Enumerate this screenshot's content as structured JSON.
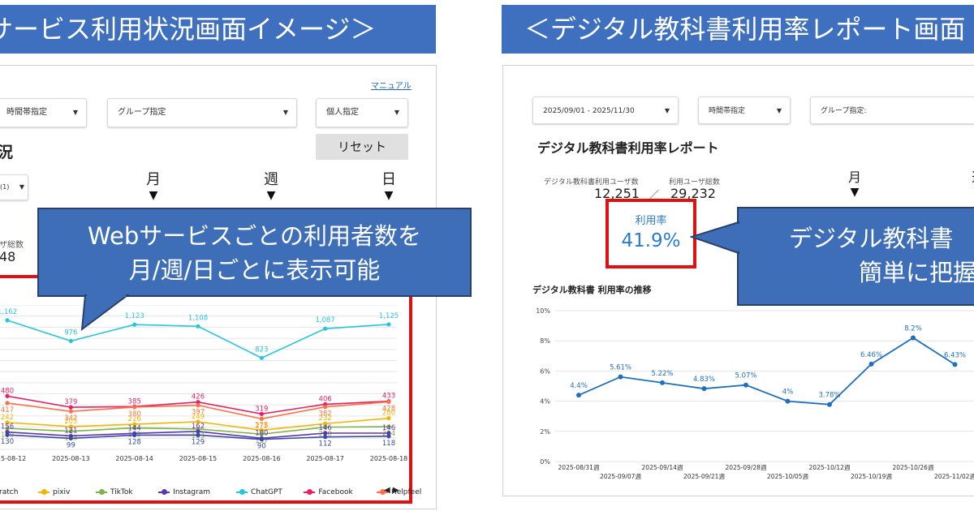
{
  "banners": {
    "left": "サービス利用状況画面イメージ＞",
    "right": "＜デジタル教科書利用率レポート画面"
  },
  "left_panel": {
    "manual_link": "マニュアル",
    "filters": {
      "time": "時間帯指定",
      "group": "グループ指定",
      "individual": "個人指定"
    },
    "heading_fragment": "況",
    "reset_button": "リセット",
    "small_dropdown": "(1)",
    "periods": {
      "month": "月",
      "week": "週",
      "day": "日"
    },
    "partial_label": "ザ総数",
    "partial_value": "48",
    "callout": {
      "line1": "Webサービスごとの利用者数を",
      "line2": "月/週/日ごとに表示可能"
    },
    "legend": [
      "ratch",
      "pixiv",
      "TikTok",
      "Instagram",
      "ChatGPT",
      "Facebook",
      "Helpfeel"
    ],
    "legend_colors": [
      "#3949ab",
      "#f4b400",
      "#7cb342",
      "#5e35b1",
      "#26c6da",
      "#e91e63",
      "#ff7043"
    ]
  },
  "right_panel": {
    "filters": {
      "date": "2025/09/01 - 2025/11/30",
      "time": "時間帯指定",
      "group": "グループ指定:"
    },
    "title": "デジタル教科書利用率レポート",
    "stats": {
      "users_label": "デジタル教科書利用ユーザ数",
      "users_value": "12,251",
      "separator": "／",
      "total_label": "利用ユーザ総数",
      "total_value": "29,232",
      "rate_label": "利用率",
      "rate_value": "41.9%"
    },
    "periods": {
      "month": "月",
      "week": "週"
    },
    "chart_title": "デジタル教科書 利用率の推移",
    "callout": {
      "line1": "デジタル教科書",
      "line2": "簡単に把握"
    }
  },
  "chart_data": [
    {
      "type": "line",
      "title": "",
      "x": [
        "2025-08-12",
        "2025-08-13",
        "2025-08-14",
        "2025-08-15",
        "2025-08-16",
        "2025-08-17",
        "2025-08-18"
      ],
      "series": [
        {
          "name": "ChatGPT",
          "color": "#26c6da",
          "values": [
            1162,
            976,
            1123,
            1108,
            823,
            1087,
            1125
          ]
        },
        {
          "name": "Facebook",
          "color": "#e91e63",
          "values": [
            480,
            379,
            385,
            426,
            319,
            406,
            433
          ]
        },
        {
          "name": "Helpfeel",
          "color": "#ff7043",
          "values": [
            417,
            342,
            380,
            397,
            275,
            382,
            428
          ]
        },
        {
          "name": "pixiv",
          "color": "#f4b400",
          "values": [
            242,
            205,
            226,
            249,
            172,
            232,
            280
          ]
        },
        {
          "name": "TikTok",
          "color": "#7cb342",
          "values": [
            189,
            163,
            193,
            183,
            137,
            200,
            204
          ]
        },
        {
          "name": "Instagram",
          "color": "#5e35b1",
          "values": [
            156,
            121,
            144,
            162,
            100,
            146,
            146
          ]
        },
        {
          "name": "ratch",
          "color": "#3949ab",
          "values": [
            130,
            99,
            128,
            129,
            90,
            112,
            118
          ]
        }
      ]
    },
    {
      "type": "line",
      "title": "デジタル教科書 利用率の推移",
      "x": [
        "2025-08/31週",
        "2025-09/07週",
        "2025-09/14週",
        "2025-09/21週",
        "2025-09/28週",
        "2025-10/05週",
        "2025-10/12週",
        "2025-10/19週",
        "2025-10/26週",
        "2025-11/02週"
      ],
      "ylim": [
        0,
        10
      ],
      "yticks": [
        "0%",
        "2%",
        "4%",
        "6%",
        "8%",
        "10%"
      ],
      "series": [
        {
          "color": "#1f6fbf",
          "values": [
            4.4,
            5.61,
            5.22,
            4.83,
            5.07,
            4.0,
            3.78,
            6.46,
            8.2,
            6.43
          ]
        }
      ],
      "point_labels": [
        "4.4%",
        "5.61%",
        "5.22%",
        "4.83%",
        "5.07%",
        "4%",
        "3.78%",
        "6.46%",
        "8.2%",
        "6.43%"
      ]
    }
  ]
}
